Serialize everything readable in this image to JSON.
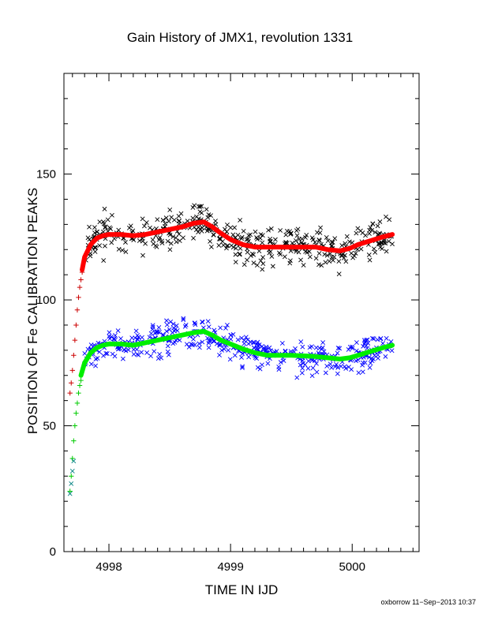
{
  "chart_data": {
    "type": "scatter",
    "title": "Gain History of JMX1, revolution 1331",
    "xlabel": "TIME IN IJD",
    "ylabel": "POSITION OF Fe CALIBRATION PEAKS",
    "xlim": [
      4997.63,
      5000.55
    ],
    "ylim": [
      0,
      190
    ],
    "xticks": [
      4998,
      4999,
      5000
    ],
    "xtick_labels": [
      "4998",
      "4999",
      "5000"
    ],
    "yticks": [
      0,
      50,
      100,
      150
    ],
    "ytick_labels": [
      "0",
      "50",
      "100",
      "150"
    ],
    "grid": false,
    "legend": "none",
    "series": [
      {
        "kind": "fit-line",
        "color": "#ff0000",
        "x": [
          4997.78,
          4997.8,
          4997.85,
          4997.9,
          4997.95,
          4998.0,
          4998.1,
          4998.2,
          4998.3,
          4998.4,
          4998.5,
          4998.6,
          4998.7,
          4998.78,
          4998.85,
          4998.92,
          4999.0,
          4999.1,
          4999.2,
          4999.3,
          4999.5,
          4999.7,
          4999.8,
          4999.9,
          4999.98,
          5000.05,
          5000.15,
          5000.25,
          5000.33
        ],
        "y": [
          112,
          117,
          122,
          124.5,
          125.5,
          126,
          126,
          125.5,
          126,
          127,
          128,
          129,
          130.5,
          131,
          129,
          126.5,
          124,
          122,
          121,
          121,
          121,
          121,
          120,
          119.5,
          120.5,
          122,
          123.5,
          125,
          126
        ]
      },
      {
        "kind": "fit-line",
        "color": "#00ee00",
        "x": [
          4997.77,
          4997.8,
          4997.85,
          4997.9,
          4997.95,
          4998.0,
          4998.1,
          4998.2,
          4998.3,
          4998.4,
          4998.5,
          4998.6,
          4998.7,
          4998.78,
          4998.85,
          4998.92,
          4999.0,
          4999.1,
          4999.2,
          4999.3,
          4999.5,
          4999.7,
          4999.8,
          4999.9,
          4999.98,
          5000.05,
          5000.15,
          5000.25,
          5000.33
        ],
        "y": [
          70,
          75,
          79,
          81,
          82,
          82.5,
          82.5,
          82,
          83,
          84,
          85,
          86,
          87,
          87.5,
          86,
          84,
          82.5,
          80.5,
          79,
          78,
          78,
          77.5,
          77,
          76.5,
          77,
          78,
          79.5,
          81,
          82
        ]
      },
      {
        "kind": "early-points",
        "marker": "+",
        "color": "#cc0000",
        "x": [
          4997.68,
          4997.69,
          4997.7,
          4997.71,
          4997.72,
          4997.73,
          4997.74,
          4997.75,
          4997.76,
          4997.77,
          4997.78
        ],
        "y": [
          63,
          67,
          72,
          78,
          84,
          90,
          96,
          101,
          105,
          108,
          111
        ]
      },
      {
        "kind": "early-points",
        "marker": "+",
        "color": "#00cc00",
        "x": [
          4997.68,
          4997.69,
          4997.7,
          4997.71,
          4997.72,
          4997.73,
          4997.74,
          4997.75,
          4997.76,
          4997.77
        ],
        "y": [
          24,
          30,
          37,
          44,
          50,
          55,
          59,
          63,
          66,
          68
        ]
      },
      {
        "kind": "early-points",
        "marker": "x",
        "color": "#008080",
        "x": [
          4997.68,
          4997.69,
          4997.7,
          4997.71
        ],
        "y": [
          23,
          27,
          32,
          36
        ]
      },
      {
        "kind": "scatter-around-fit",
        "of": 0,
        "marker": "x",
        "color": "#000000",
        "xrange": [
          4997.78,
          5000.33
        ],
        "count": 420,
        "spread": 5.5,
        "seed": 11
      },
      {
        "kind": "scatter-around-fit",
        "of": 1,
        "marker": "x",
        "color": "#0000ff",
        "xrange": [
          4997.78,
          5000.33
        ],
        "count": 420,
        "spread": 4.5,
        "seed": 29
      }
    ]
  },
  "footer": "oxborrow 11−Sep−2013 10:37"
}
